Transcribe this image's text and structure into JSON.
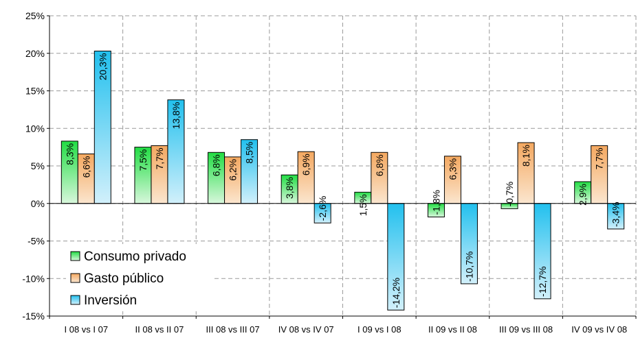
{
  "chart_data": {
    "type": "bar",
    "categories": [
      "I 08 vs I 07",
      "II 08 vs II 07",
      "III 08 vs III 07",
      "IV 08 vs IV 07",
      "I 09 vs I 08",
      "II 09 vs II 08",
      "III 09 vs III 08",
      "IV 09 vs IV 08"
    ],
    "series": [
      {
        "name": "Consumo privado",
        "values": [
          8.3,
          7.5,
          6.8,
          3.8,
          1.5,
          -1.8,
          -0.7,
          2.9
        ],
        "labels": [
          "8,3%",
          "7,5%",
          "6,8%",
          "3,8%",
          "1,5%",
          "-1,8%",
          "-0,7%",
          "2,9%"
        ],
        "color": "#33dd55"
      },
      {
        "name": "Gasto público",
        "values": [
          6.6,
          7.7,
          6.2,
          6.9,
          6.8,
          6.3,
          8.1,
          7.7
        ],
        "labels": [
          "6,6%",
          "7,7%",
          "6,2%",
          "6,9%",
          "6,8%",
          "6,3%",
          "8,1%",
          "7,7%"
        ],
        "color": "#f5b070"
      },
      {
        "name": "Inversión",
        "values": [
          20.3,
          13.8,
          8.5,
          -2.6,
          -14.2,
          -10.7,
          -12.7,
          -3.4
        ],
        "labels": [
          "20,3%",
          "13,8%",
          "8,5%",
          "-2,6%",
          "-14,2%",
          "-10,7%",
          "-12,7%",
          "-3,4%"
        ],
        "color": "#33c8f0"
      }
    ],
    "ylim": [
      -15,
      25
    ],
    "yticks": [
      25,
      20,
      15,
      10,
      5,
      0,
      -5,
      -10,
      -15
    ],
    "ytick_labels": [
      "25%",
      "20%",
      "15%",
      "10%",
      "5%",
      "0%",
      "-5%",
      "-10%",
      "-15%"
    ],
    "title": "",
    "xlabel": "",
    "ylabel": "",
    "grid": "dashed",
    "legend_position": "bottom-left"
  }
}
